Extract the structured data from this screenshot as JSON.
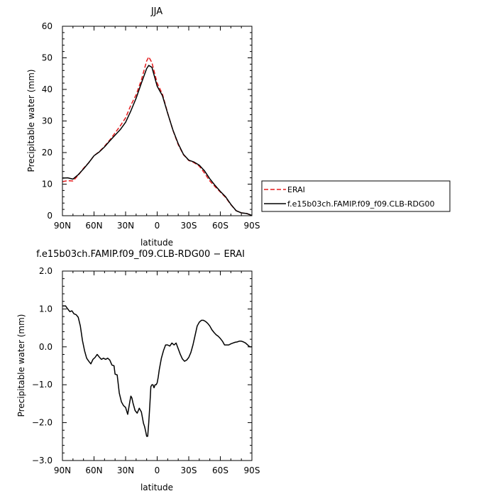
{
  "chart_data": [
    {
      "type": "line",
      "title": "JJA",
      "xlabel": "latitude",
      "ylabel": "Precipitable water (mm)",
      "xlim": [
        90,
        -90
      ],
      "ylim": [
        0,
        60
      ],
      "xticks": [
        90,
        60,
        30,
        0,
        -30,
        -60,
        -90
      ],
      "xtick_labels": [
        "90N",
        "60N",
        "30N",
        "0",
        "30S",
        "60S",
        "90S"
      ],
      "yticks": [
        0,
        10,
        20,
        30,
        40,
        50,
        60
      ],
      "ytick_labels": [
        "0",
        "10",
        "20",
        "30",
        "40",
        "50",
        "60"
      ],
      "legend_position": "right",
      "series": [
        {
          "name": "ERAI",
          "color": "#e41a1c",
          "dash": "dashed",
          "x": [
            90,
            85,
            80,
            75,
            70,
            65,
            60,
            55,
            50,
            45,
            40,
            35,
            30,
            25,
            20,
            15,
            10,
            8,
            5,
            0,
            -5,
            -10,
            -15,
            -20,
            -25,
            -30,
            -35,
            -40,
            -45,
            -50,
            -55,
            -60,
            -65,
            -70,
            -75,
            -80,
            -85,
            -90
          ],
          "values": [
            10.8,
            11.1,
            11.0,
            12.8,
            15.0,
            16.8,
            19.0,
            20.3,
            22.0,
            24.0,
            26.2,
            28.5,
            31.0,
            35.0,
            38.3,
            43.0,
            49.0,
            50.3,
            48.5,
            42.0,
            38.5,
            32.5,
            27.0,
            22.5,
            19.3,
            17.5,
            16.8,
            15.7,
            13.5,
            11.0,
            9.2,
            7.5,
            5.8,
            3.5,
            1.6,
            0.9,
            0.7,
            0.1
          ]
        },
        {
          "name": "f.e15b03ch.FAMIP.f09_f09.CLB-RDG00",
          "color": "#000000",
          "dash": "solid",
          "x": [
            90,
            85,
            80,
            75,
            70,
            65,
            60,
            55,
            50,
            45,
            40,
            35,
            30,
            25,
            20,
            15,
            10,
            8,
            5,
            0,
            -5,
            -10,
            -15,
            -20,
            -25,
            -30,
            -35,
            -40,
            -45,
            -50,
            -55,
            -60,
            -65,
            -70,
            -75,
            -80,
            -85,
            -90
          ],
          "values": [
            11.9,
            12.0,
            11.6,
            13.0,
            14.8,
            16.8,
            19.0,
            20.2,
            21.8,
            23.7,
            25.5,
            27.3,
            29.6,
            33.2,
            37.2,
            42.0,
            46.6,
            47.6,
            47.0,
            41.0,
            38.0,
            32.4,
            27.1,
            22.8,
            19.4,
            17.6,
            17.0,
            16.0,
            14.2,
            11.7,
            9.6,
            7.7,
            6.0,
            3.6,
            1.6,
            0.9,
            0.7,
            0.1
          ]
        }
      ]
    },
    {
      "type": "line",
      "title": "f.e15b03ch.FAMIP.f09_f09.CLB-RDG00 − ERAI",
      "xlabel": "latitude",
      "ylabel": "Precipitable water (mm)",
      "xlim": [
        90,
        -90
      ],
      "ylim": [
        -3.0,
        2.0
      ],
      "xticks": [
        90,
        60,
        30,
        0,
        -30,
        -60,
        -90
      ],
      "xtick_labels": [
        "90N",
        "60N",
        "30N",
        "0",
        "30S",
        "60S",
        "90S"
      ],
      "yticks": [
        -3.0,
        -2.0,
        -1.0,
        0.0,
        1.0,
        2.0
      ],
      "ytick_labels": [
        "−3.0",
        "−2.0",
        "−1.0",
        "0.0",
        "1.0",
        "2.0"
      ],
      "series": [
        {
          "color": "#000000",
          "dash": "solid",
          "x": [
            90,
            87,
            85,
            83,
            81,
            79,
            77,
            75,
            73,
            71,
            69,
            67,
            65,
            63,
            61,
            59,
            57,
            55,
            53,
            51,
            49,
            47,
            45,
            43,
            41,
            40,
            38,
            36,
            34,
            32,
            30,
            28,
            26,
            25,
            24,
            23,
            21,
            19,
            17,
            15,
            13,
            12,
            11,
            10,
            9,
            8,
            7,
            6,
            5,
            4,
            3,
            2,
            1,
            0,
            -1,
            -2,
            -4,
            -6,
            -8,
            -10,
            -12,
            -14,
            -16,
            -18,
            -20,
            -22,
            -24,
            -26,
            -28,
            -30,
            -32,
            -34,
            -36,
            -38,
            -40,
            -42,
            -44,
            -46,
            -48,
            -50,
            -52,
            -54,
            -56,
            -58,
            -60,
            -62,
            -64,
            -66,
            -68,
            -70,
            -72,
            -74,
            -76,
            -78,
            -80,
            -82,
            -84,
            -86,
            -88,
            -90
          ],
          "values": [
            1.08,
            1.08,
            1.0,
            0.93,
            0.95,
            0.87,
            0.85,
            0.78,
            0.55,
            0.17,
            -0.1,
            -0.3,
            -0.38,
            -0.45,
            -0.33,
            -0.28,
            -0.2,
            -0.27,
            -0.33,
            -0.3,
            -0.33,
            -0.3,
            -0.35,
            -0.48,
            -0.5,
            -0.72,
            -0.74,
            -1.22,
            -1.45,
            -1.55,
            -1.6,
            -1.78,
            -1.45,
            -1.3,
            -1.35,
            -1.48,
            -1.68,
            -1.75,
            -1.62,
            -1.72,
            -2.02,
            -2.1,
            -2.22,
            -2.36,
            -2.36,
            -2.0,
            -1.55,
            -1.05,
            -1.0,
            -1.0,
            -1.08,
            -1.0,
            -1.0,
            -0.95,
            -0.8,
            -0.6,
            -0.3,
            -0.1,
            0.05,
            0.05,
            0.02,
            0.1,
            0.05,
            0.1,
            -0.05,
            -0.2,
            -0.32,
            -0.38,
            -0.35,
            -0.28,
            -0.15,
            0.05,
            0.3,
            0.55,
            0.65,
            0.7,
            0.7,
            0.67,
            0.62,
            0.55,
            0.45,
            0.38,
            0.32,
            0.28,
            0.22,
            0.15,
            0.05,
            0.05,
            0.05,
            0.08,
            0.1,
            0.12,
            0.13,
            0.15,
            0.15,
            0.13,
            0.1,
            0.05,
            0.0,
            0.0
          ]
        }
      ]
    }
  ]
}
